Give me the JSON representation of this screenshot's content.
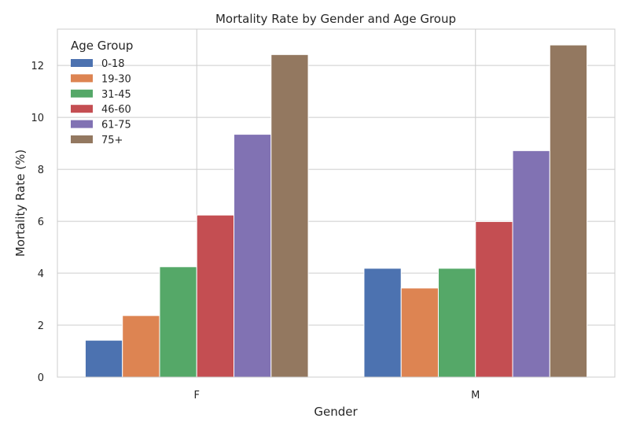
{
  "chart_data": {
    "type": "bar",
    "title": "Mortality Rate by Gender and Age Group",
    "xlabel": "Gender",
    "ylabel": "Mortality Rate (%)",
    "categories": [
      "F",
      "M"
    ],
    "ylim": [
      0,
      13.4
    ],
    "yticks": [
      0,
      2,
      4,
      6,
      8,
      10,
      12
    ],
    "grid": true,
    "legend": {
      "title": "Age Group",
      "position": "top-left"
    },
    "series": [
      {
        "name": "0-18",
        "color": "#4c72b0",
        "values": [
          1.42,
          4.19
        ]
      },
      {
        "name": "19-30",
        "color": "#dd8452",
        "values": [
          2.37,
          3.43
        ]
      },
      {
        "name": "31-45",
        "color": "#55a868",
        "values": [
          4.25,
          4.19
        ]
      },
      {
        "name": "46-60",
        "color": "#c44e52",
        "values": [
          6.24,
          5.99
        ]
      },
      {
        "name": "61-75",
        "color": "#8172b3",
        "values": [
          9.35,
          8.72
        ]
      },
      {
        "name": "75+",
        "color": "#937860",
        "values": [
          12.42,
          12.79
        ]
      }
    ]
  }
}
